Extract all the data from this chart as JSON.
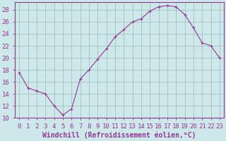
{
  "x": [
    0,
    1,
    2,
    3,
    4,
    5,
    6,
    7,
    8,
    9,
    10,
    11,
    12,
    13,
    14,
    15,
    16,
    17,
    18,
    19,
    20,
    21,
    22,
    23
  ],
  "y": [
    17.5,
    15.0,
    14.5,
    14.0,
    12.0,
    10.5,
    11.5,
    16.5,
    18.0,
    19.8,
    21.5,
    23.5,
    24.7,
    26.0,
    26.5,
    27.8,
    28.5,
    28.7,
    28.5,
    27.2,
    25.0,
    22.5,
    22.0,
    20.0
  ],
  "line_color": "#993399",
  "marker": "P",
  "marker_size": 2.5,
  "bg_color": "#cce8e8",
  "grid_color": "#99bbbb",
  "xlabel": "Windchill (Refroidissement éolien,°C)",
  "ylim": [
    10,
    29
  ],
  "xlim": [
    -0.5,
    23.5
  ],
  "yticks": [
    10,
    12,
    14,
    16,
    18,
    20,
    22,
    24,
    26,
    28
  ],
  "xticks": [
    0,
    1,
    2,
    3,
    4,
    5,
    6,
    7,
    8,
    9,
    10,
    11,
    12,
    13,
    14,
    15,
    16,
    17,
    18,
    19,
    20,
    21,
    22,
    23
  ],
  "xlabel_fontsize": 7,
  "tick_fontsize": 6.5,
  "axis_color": "#993399",
  "spine_color": "#993399"
}
